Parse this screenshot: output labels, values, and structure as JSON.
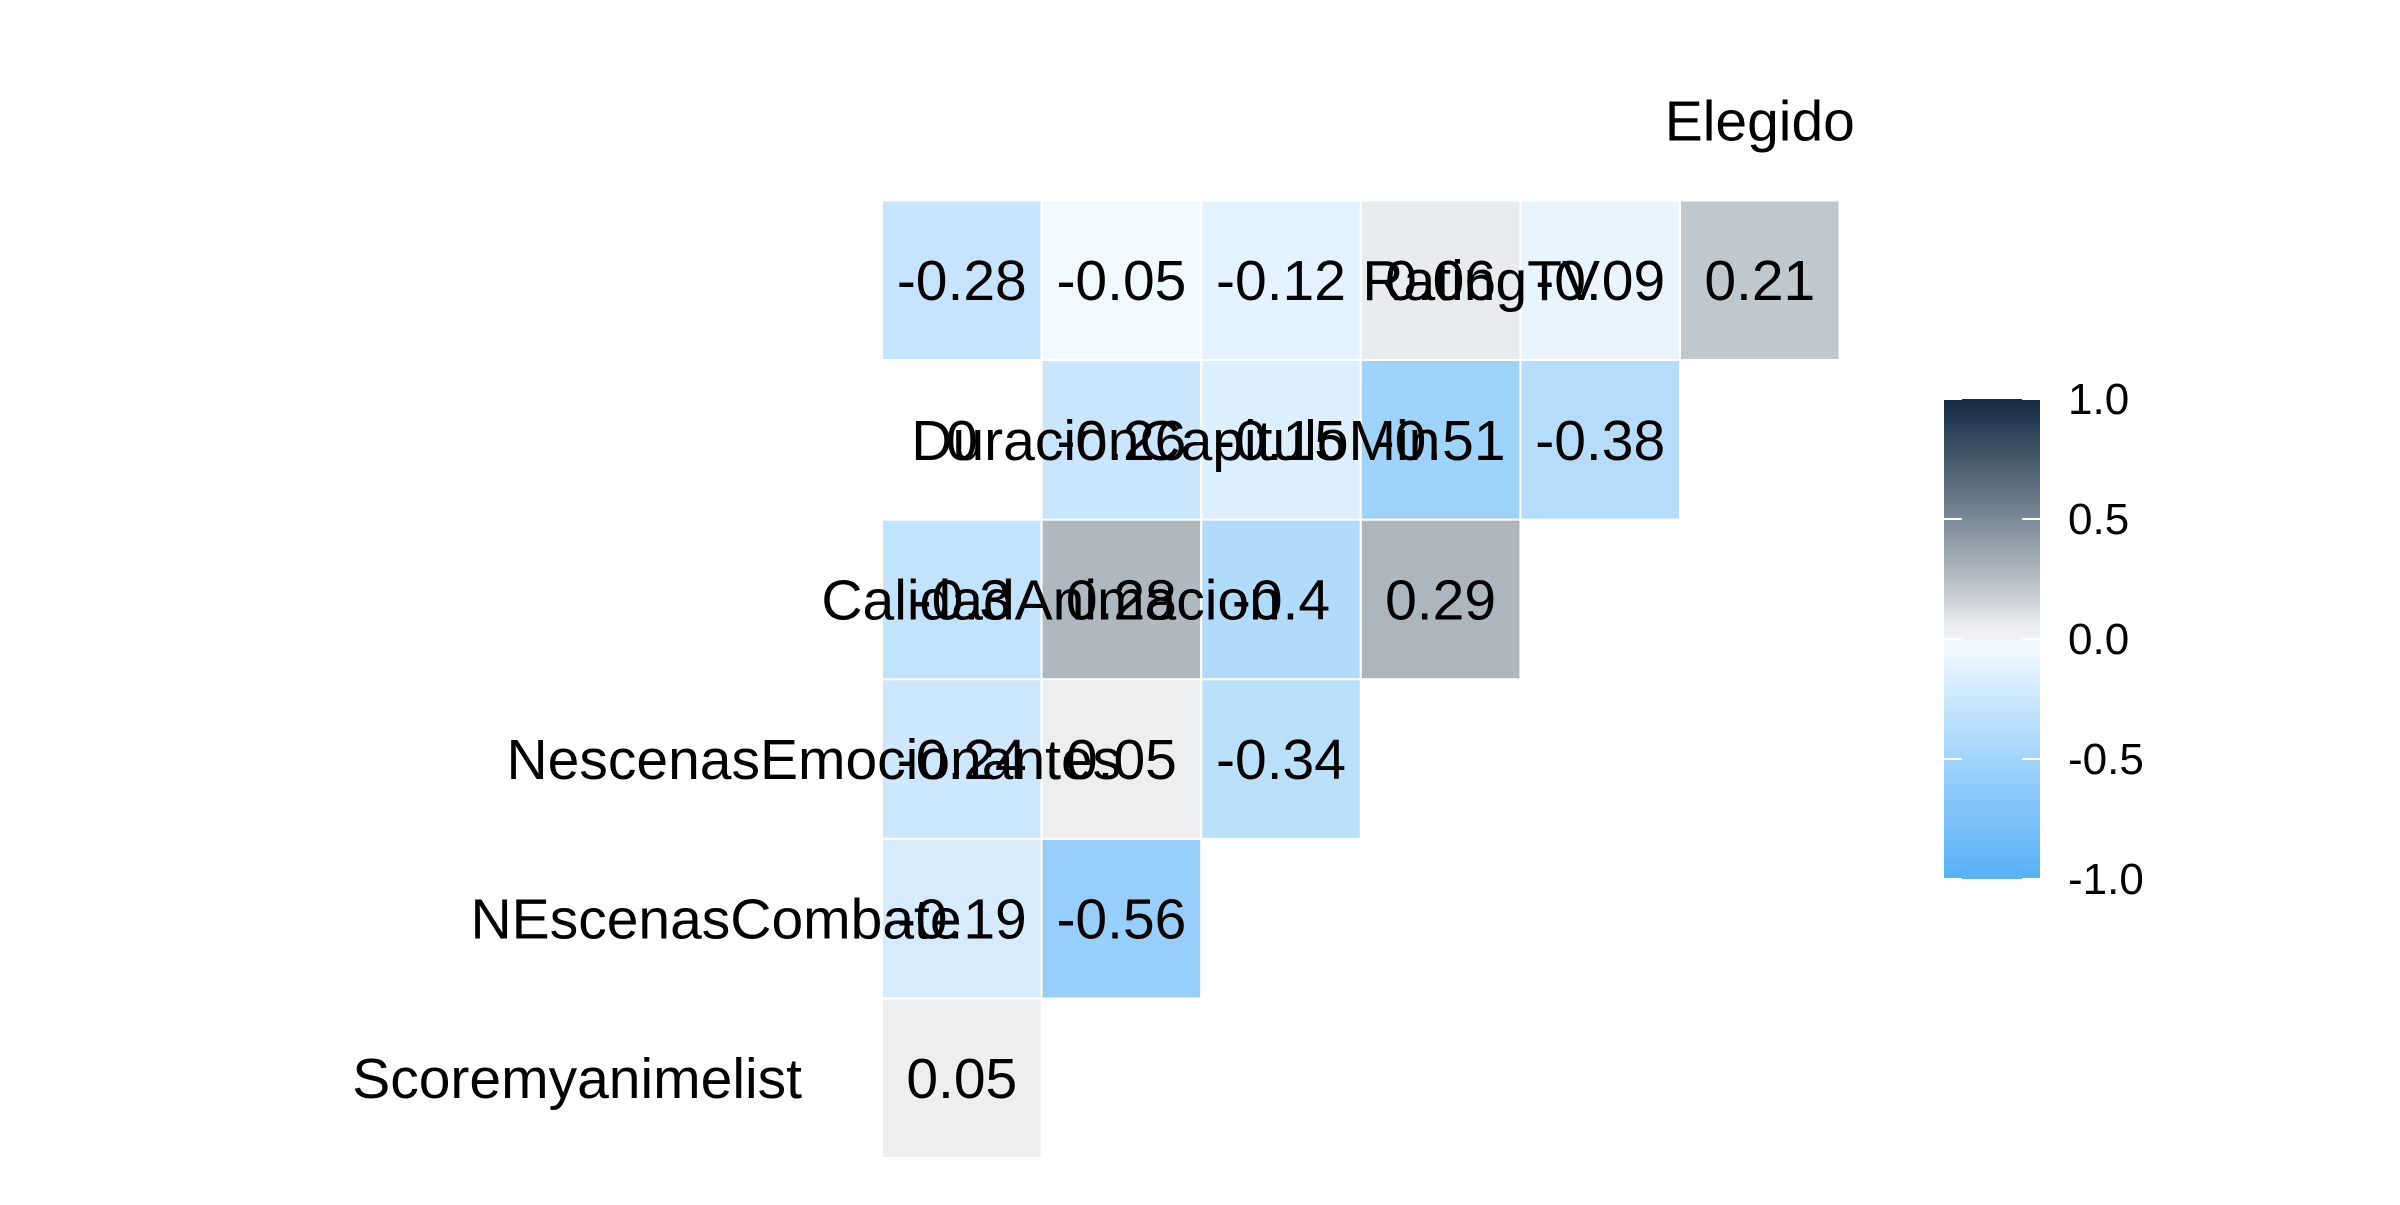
{
  "chart_data": {
    "type": "heatmap",
    "title": "",
    "variables": [
      "Scoremyanimelist",
      "NEscenasCombate",
      "NescenasEmocionantes",
      "CalidadAnimacion",
      "DuracionCapituloMin",
      "RatingTV",
      "Elegido"
    ],
    "cells": [
      {
        "row": "NEscenasCombate",
        "col": "Scoremyanimelist",
        "value": 0.05,
        "label": "0.05"
      },
      {
        "row": "NescenasEmocionantes",
        "col": "Scoremyanimelist",
        "value": -0.19,
        "label": "-0.19"
      },
      {
        "row": "NescenasEmocionantes",
        "col": "NEscenasCombate",
        "value": -0.56,
        "label": "-0.56"
      },
      {
        "row": "CalidadAnimacion",
        "col": "Scoremyanimelist",
        "value": -0.24,
        "label": "-0.24"
      },
      {
        "row": "CalidadAnimacion",
        "col": "NEscenasCombate",
        "value": 0.05,
        "label": "0.05"
      },
      {
        "row": "CalidadAnimacion",
        "col": "NescenasEmocionantes",
        "value": -0.34,
        "label": "-0.34"
      },
      {
        "row": "DuracionCapituloMin",
        "col": "Scoremyanimelist",
        "value": -0.3,
        "label": "-0.3"
      },
      {
        "row": "DuracionCapituloMin",
        "col": "NEscenasCombate",
        "value": 0.28,
        "label": "0.28"
      },
      {
        "row": "DuracionCapituloMin",
        "col": "NescenasEmocionantes",
        "value": -0.4,
        "label": "-0.4"
      },
      {
        "row": "DuracionCapituloMin",
        "col": "CalidadAnimacion",
        "value": 0.29,
        "label": "0.29"
      },
      {
        "row": "RatingTV",
        "col": "Scoremyanimelist",
        "value": 0,
        "label": "0"
      },
      {
        "row": "RatingTV",
        "col": "NEscenasCombate",
        "value": -0.26,
        "label": "-0.26"
      },
      {
        "row": "RatingTV",
        "col": "NescenasEmocionantes",
        "value": -0.15,
        "label": "-0.15"
      },
      {
        "row": "RatingTV",
        "col": "CalidadAnimacion",
        "value": -0.51,
        "label": "-0.51"
      },
      {
        "row": "RatingTV",
        "col": "DuracionCapituloMin",
        "value": -0.38,
        "label": "-0.38"
      },
      {
        "row": "Elegido",
        "col": "Scoremyanimelist",
        "value": -0.28,
        "label": "-0.28"
      },
      {
        "row": "Elegido",
        "col": "NEscenasCombate",
        "value": -0.05,
        "label": "-0.05"
      },
      {
        "row": "Elegido",
        "col": "NescenasEmocionantes",
        "value": -0.12,
        "label": "-0.12"
      },
      {
        "row": "Elegido",
        "col": "CalidadAnimacion",
        "value": 0.06,
        "label": "0.06"
      },
      {
        "row": "Elegido",
        "col": "DuracionCapituloMin",
        "value": -0.09,
        "label": "-0.09"
      },
      {
        "row": "Elegido",
        "col": "RatingTV",
        "value": 0.21,
        "label": "0.21"
      }
    ],
    "legend": {
      "placement": "right",
      "range": [
        -1.0,
        1.0
      ],
      "ticks": [
        {
          "value": 1.0,
          "label": "1.0"
        },
        {
          "value": 0.5,
          "label": "0.5"
        },
        {
          "value": 0.0,
          "label": "0.0"
        },
        {
          "value": -0.5,
          "label": "-0.5"
        },
        {
          "value": -1.0,
          "label": "-1.0"
        }
      ]
    },
    "colors": {
      "low": "#56B1F7",
      "mid": "#FFFFFF",
      "high": "#132B43",
      "cell_border": "#FFFFFF",
      "text": "#000000",
      "background": "#FFFFFF"
    }
  }
}
